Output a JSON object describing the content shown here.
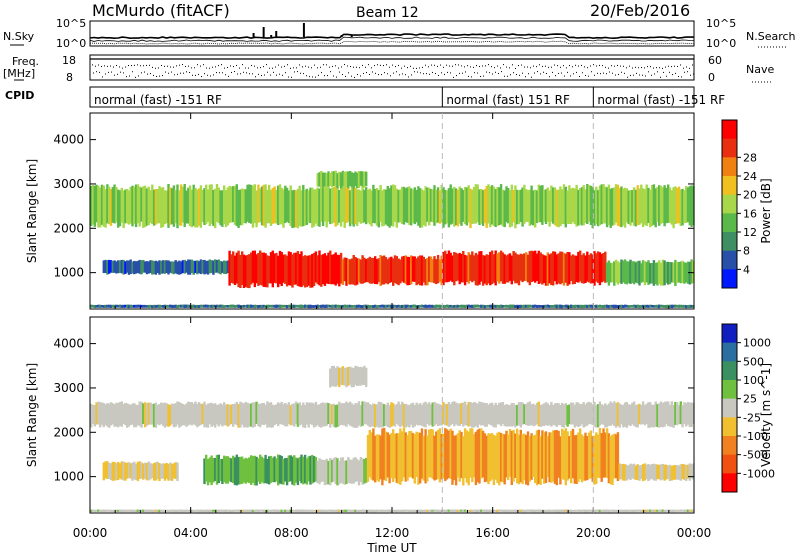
{
  "header": {
    "station": "McMurdo (fitACF)",
    "beam": "Beam 12",
    "date": "20/Feb/2016"
  },
  "top_panels": {
    "nsky_label": "N.Sky",
    "nsky_ticks": [
      "10^5",
      "10^0"
    ],
    "nsearch_label": "N.Search",
    "nsearch_ticks": [
      "10^5",
      "10^0"
    ],
    "freq_label_1": "Freq.",
    "freq_label_2": "[MHz]",
    "freq_ticks": [
      "18",
      "8"
    ],
    "nave_label": "Nave",
    "nave_ticks": [
      "60",
      "0"
    ],
    "cpid_label": "CPID",
    "cpid_segments": [
      {
        "label": "normal (fast) -151 RF",
        "start_hour": 0,
        "end_hour": 14
      },
      {
        "label": "normal (fast) 151 RF",
        "start_hour": 14,
        "end_hour": 20
      },
      {
        "label": "normal (fast) -151 RF",
        "start_hour": 20,
        "end_hour": 24
      }
    ]
  },
  "chart_data": [
    {
      "type": "heatmap",
      "name": "power",
      "ylabel": "Slant Range [km]",
      "ylim": [
        180,
        4600
      ],
      "yticks": [
        "1000",
        "2000",
        "3000",
        "4000"
      ],
      "xlim_hours": [
        0,
        24
      ],
      "colorbar_label": "Power [dB]",
      "colorbar_ticks": [
        "4",
        "8",
        "12",
        "16",
        "20",
        "24",
        "28"
      ],
      "colorbar_range": [
        0,
        30
      ],
      "colors": [
        "#0018ff",
        "#2850a8",
        "#3f8f62",
        "#5bb84a",
        "#a8d84a",
        "#f0c020",
        "#f08010",
        "#e83010",
        "#ff0000"
      ],
      "regions": [
        {
          "t0": 0.0,
          "t1": 4.0,
          "r0": 200,
          "r1": 280,
          "value": 6
        },
        {
          "t0": 4.0,
          "t1": 24.0,
          "r0": 200,
          "r1": 280,
          "value": 7
        },
        {
          "t0": 0.5,
          "t1": 5.5,
          "r0": 950,
          "r1": 1300,
          "value": 6
        },
        {
          "t0": 5.5,
          "t1": 10.0,
          "r0": 650,
          "r1": 1500,
          "value": 27
        },
        {
          "t0": 10.0,
          "t1": 14.0,
          "r0": 700,
          "r1": 1400,
          "value": 25
        },
        {
          "t0": 14.0,
          "t1": 20.5,
          "r0": 700,
          "r1": 1500,
          "value": 26
        },
        {
          "t0": 20.5,
          "t1": 24.0,
          "r0": 700,
          "r1": 1300,
          "value": 12
        },
        {
          "t0": 0.0,
          "t1": 24.0,
          "r0": 2000,
          "r1": 3000,
          "value": 14
        },
        {
          "t0": 9.0,
          "t1": 11.0,
          "r0": 2900,
          "r1": 3300,
          "value": 13
        }
      ]
    },
    {
      "type": "heatmap",
      "name": "velocity",
      "ylabel": "Slant Range [km]",
      "ylim": [
        180,
        4600
      ],
      "yticks": [
        "1000",
        "2000",
        "3000",
        "4000"
      ],
      "xlim_hours": [
        0,
        24
      ],
      "xticks": [
        "00:00",
        "04:00",
        "08:00",
        "12:00",
        "16:00",
        "20:00",
        "00:00"
      ],
      "xlabel": "Time UT",
      "colorbar_label": "Velocity [m s^-1]",
      "colorbar_ticks": [
        "1000",
        "500",
        "100",
        "25",
        "-25",
        "-100",
        "-500",
        "-1000"
      ],
      "colorbar_range": [
        -1200,
        1200
      ],
      "colors": [
        "#1020c0",
        "#2a6fa0",
        "#3a9060",
        "#70c040",
        "#c8c8c0",
        "#f0c030",
        "#f08020",
        "#f05010",
        "#ff0000"
      ],
      "regions": [
        {
          "t0": 0.0,
          "t1": 24.0,
          "r0": 200,
          "r1": 260,
          "value": 0
        },
        {
          "t0": 0.5,
          "t1": 3.5,
          "r0": 900,
          "r1": 1350,
          "value": -150
        },
        {
          "t0": 4.5,
          "t1": 9.0,
          "r0": 800,
          "r1": 1500,
          "value": 400
        },
        {
          "t0": 9.0,
          "t1": 11.0,
          "r0": 800,
          "r1": 1450,
          "value": 60
        },
        {
          "t0": 11.0,
          "t1": 21.0,
          "r0": 800,
          "r1": 2100,
          "value": -400
        },
        {
          "t0": 21.0,
          "t1": 24.0,
          "r0": 900,
          "r1": 1300,
          "value": -150
        },
        {
          "t0": 0.0,
          "t1": 24.0,
          "r0": 2100,
          "r1": 2700,
          "value": 0
        },
        {
          "t0": 9.5,
          "t1": 11.0,
          "r0": 3000,
          "r1": 3500,
          "value": 0
        }
      ]
    }
  ]
}
